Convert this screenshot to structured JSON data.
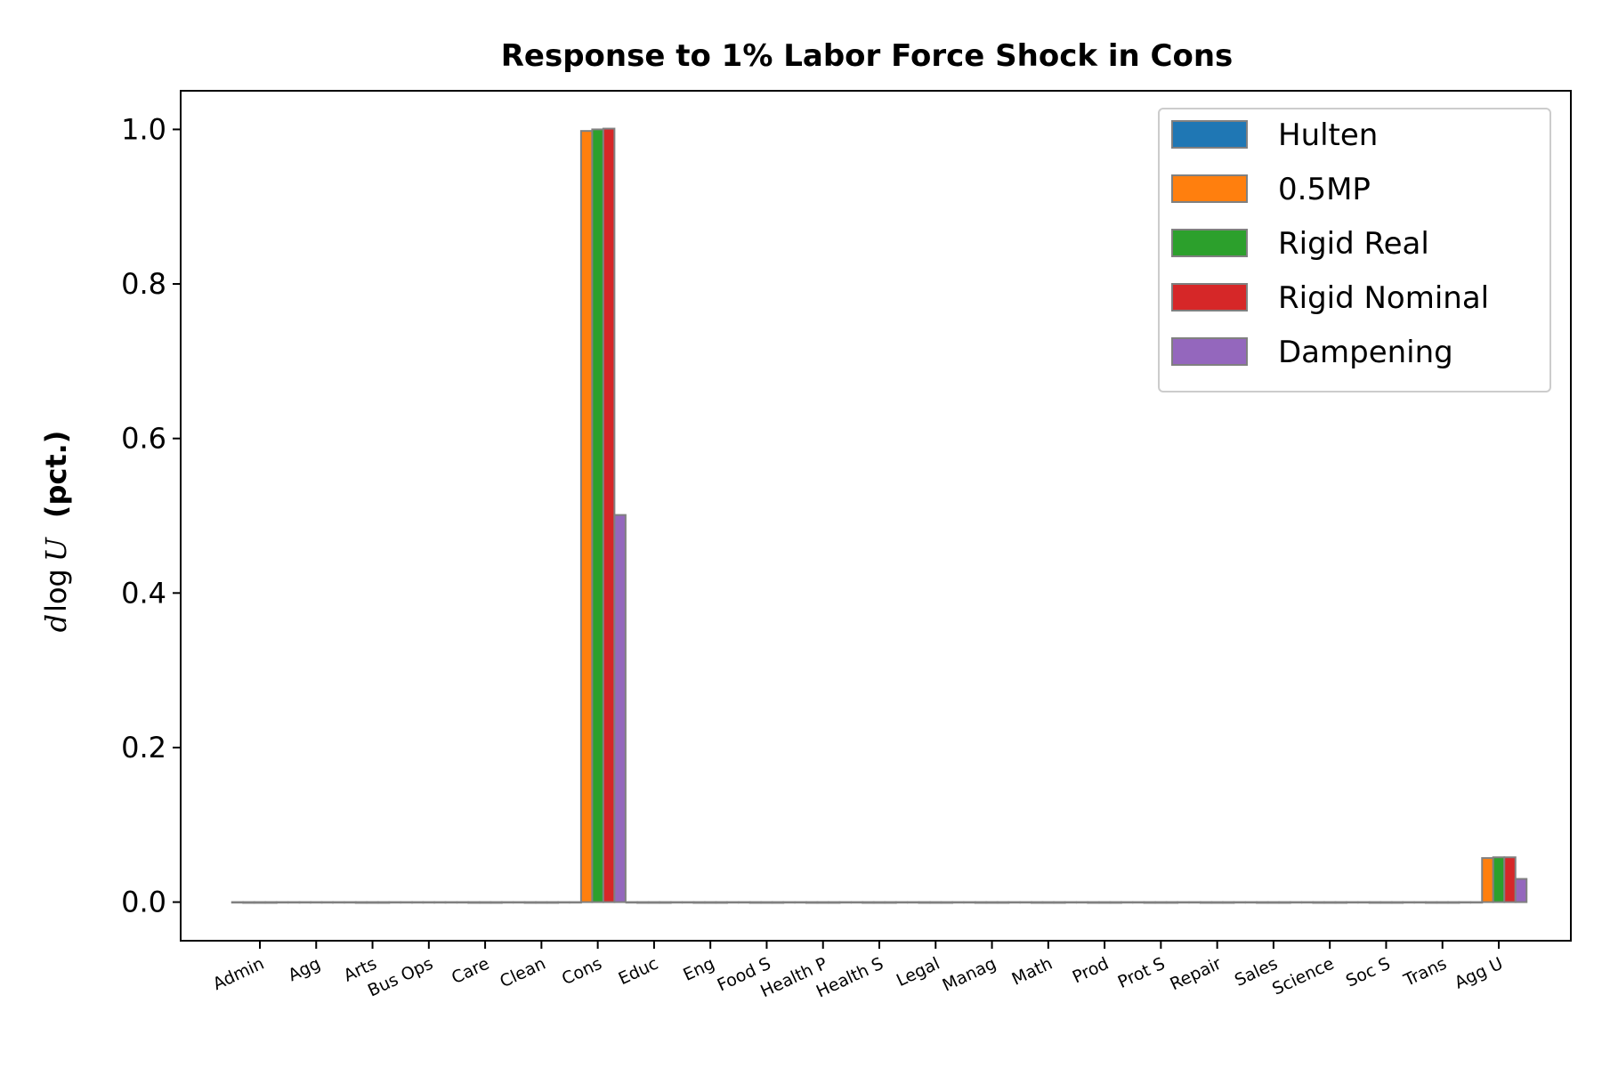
{
  "chart_data": {
    "type": "bar",
    "title": "Response to 1% Labor Force Shock in Cons",
    "ylabel": {
      "variable": "d",
      "operator": "log",
      "variable2": "U",
      "unit": "(pct.)"
    },
    "xlabel": "",
    "ylim": [
      -0.05,
      1.05
    ],
    "yticks": [
      "0.0",
      "0.2",
      "0.4",
      "0.6",
      "0.8",
      "1.0"
    ],
    "ytick_values": [
      0.0,
      0.2,
      0.4,
      0.6,
      0.8,
      1.0
    ],
    "grid": false,
    "legend_position": "top-right",
    "categories": [
      "Admin",
      "Agg",
      "Arts",
      "Bus Ops",
      "Care",
      "Clean",
      "Cons",
      "Educ",
      "Eng",
      "Food S",
      "Health P",
      "Health S",
      "Legal",
      "Manag",
      "Math",
      "Prod",
      "Prot S",
      "Repair",
      "Sales",
      "Science",
      "Soc S",
      "Trans",
      "Agg U"
    ],
    "series": [
      {
        "name": "Hulten",
        "color": "#1f77b4",
        "values": [
          0,
          0,
          0,
          0,
          0,
          0,
          0,
          0,
          0,
          0,
          0,
          0,
          0,
          0,
          0,
          0,
          0,
          0,
          0,
          0,
          0,
          0,
          0
        ]
      },
      {
        "name": "0.5MP",
        "color": "#ff7f0e",
        "values": [
          -0.001,
          0,
          -0.001,
          0,
          -0.001,
          -0.001,
          0.998,
          -0.001,
          -0.001,
          -0.001,
          -0.001,
          -0.001,
          -0.001,
          -0.001,
          -0.001,
          -0.001,
          -0.001,
          -0.001,
          -0.001,
          -0.001,
          -0.001,
          -0.001,
          0.057
        ]
      },
      {
        "name": "Rigid Real",
        "color": "#2ca02c",
        "values": [
          -0.001,
          0,
          -0.001,
          0,
          -0.001,
          -0.001,
          1.0,
          -0.001,
          -0.001,
          -0.001,
          -0.001,
          -0.001,
          -0.001,
          -0.001,
          -0.001,
          -0.001,
          -0.001,
          -0.001,
          -0.001,
          -0.001,
          -0.001,
          -0.001,
          0.058
        ]
      },
      {
        "name": "Rigid Nominal",
        "color": "#d62728",
        "values": [
          -0.001,
          0,
          -0.001,
          0,
          -0.001,
          -0.001,
          1.001,
          -0.001,
          -0.001,
          -0.001,
          -0.001,
          -0.001,
          -0.001,
          -0.001,
          -0.001,
          -0.001,
          -0.001,
          -0.001,
          -0.001,
          -0.001,
          -0.001,
          -0.001,
          0.058
        ]
      },
      {
        "name": "Dampening",
        "color": "#9467bd",
        "values": [
          0,
          0,
          0,
          0,
          0,
          0,
          0.501,
          0,
          0,
          0,
          0,
          0,
          0,
          0,
          0,
          0,
          0,
          0,
          0,
          0,
          0,
          0,
          0.03
        ]
      }
    ],
    "bar_edge_color": "#808080",
    "axis_color": "#000000"
  }
}
